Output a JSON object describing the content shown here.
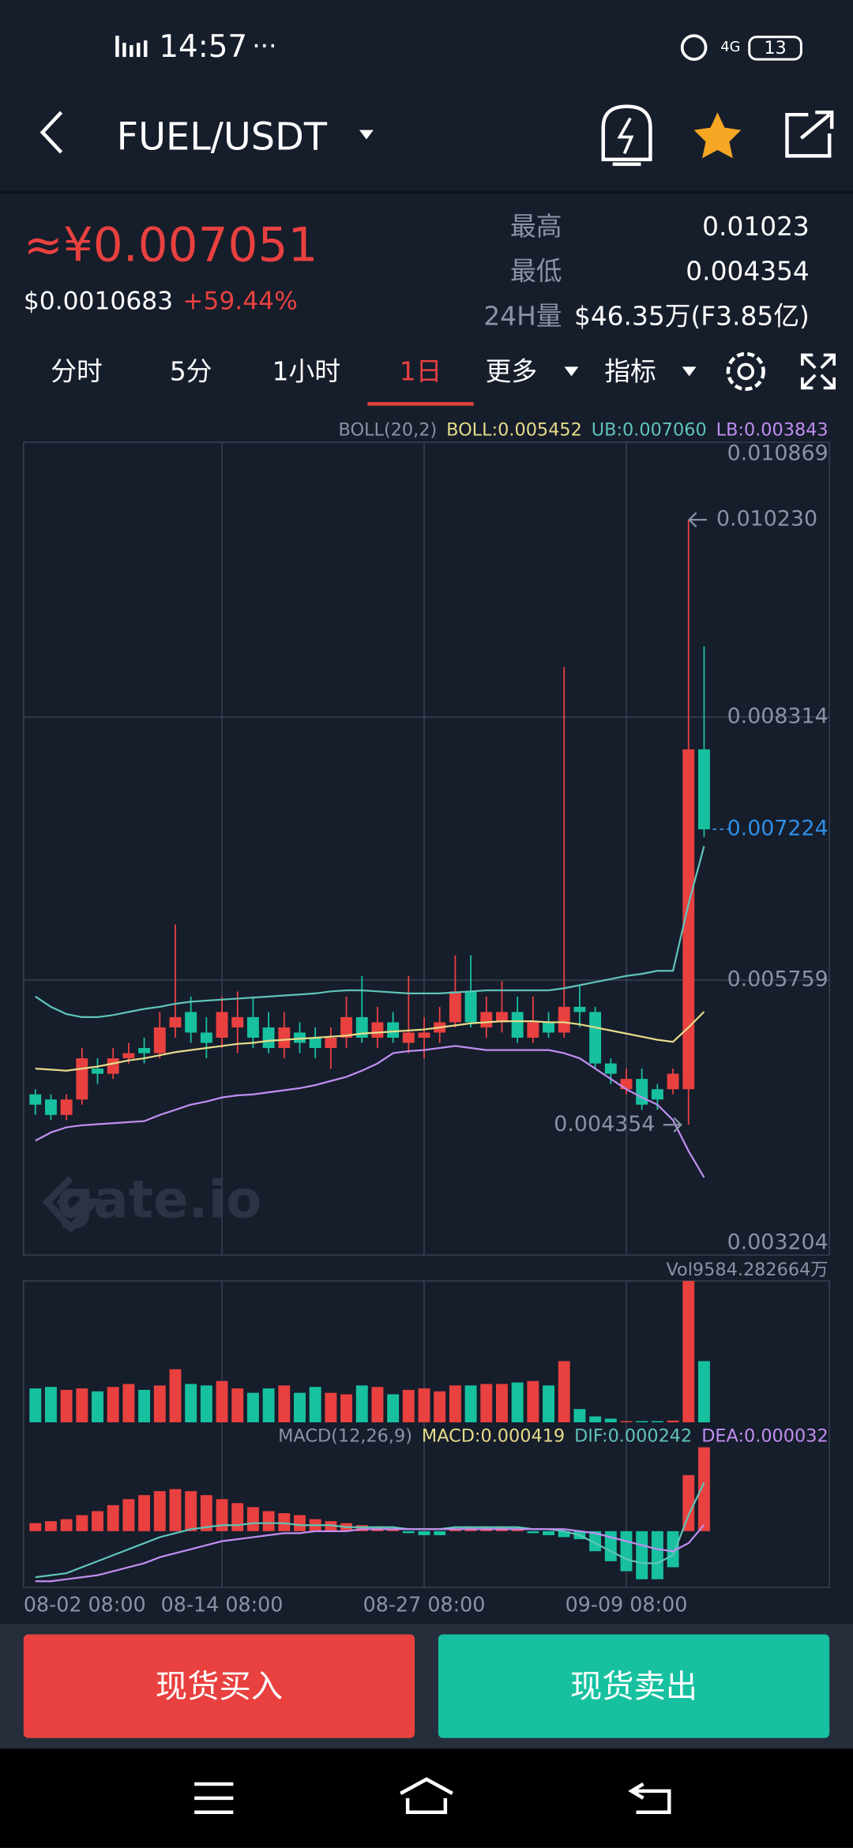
{
  "status_bar": {
    "time": "14:57",
    "battery": "13"
  },
  "header": {
    "title": "FUEL/USDT"
  },
  "ticker": {
    "price_cny": "≈¥0.007051",
    "price_usd": "$0.0010683",
    "change": "+59.44%",
    "stats": [
      {
        "label": "最高",
        "value": "0.01023"
      },
      {
        "label": "最低",
        "value": "0.004354"
      },
      {
        "label": "24H量",
        "value": "$46.35万(F3.85亿)"
      }
    ]
  },
  "tabs": [
    "分时",
    "5分",
    "1小时",
    "1日",
    "更多",
    "指标"
  ],
  "chart_data": {
    "type": "candlestick",
    "categories": [
      "08-02 08:00",
      null,
      null,
      null,
      null,
      null,
      null,
      null,
      null,
      null,
      null,
      null,
      "08-14 08:00",
      null,
      null,
      null,
      null,
      null,
      null,
      null,
      null,
      null,
      null,
      null,
      null,
      "08-27 08:00",
      null,
      null,
      null,
      null,
      null,
      null,
      null,
      null,
      null,
      null,
      null,
      null,
      "09-09 08:00",
      null,
      null,
      null,
      null,
      null
    ],
    "open": [
      0.00465,
      0.0046,
      0.00445,
      0.0046,
      0.0049,
      0.00485,
      0.005,
      0.0051,
      0.00505,
      0.0053,
      0.00545,
      0.00525,
      0.0052,
      0.0053,
      0.0054,
      0.0053,
      0.0051,
      0.00525,
      0.0052,
      0.0051,
      0.0052,
      0.0054,
      0.0052,
      0.00535,
      0.00515,
      0.0052,
      0.00525,
      0.00535,
      0.00565,
      0.0053,
      0.00535,
      0.00545,
      0.0052,
      0.00535,
      0.00525,
      0.0055,
      0.00545,
      0.00495,
      0.0047,
      0.0048,
      0.0047,
      0.0047,
      0.0047,
      0.008
    ],
    "high": [
      0.0047,
      0.00465,
      0.00465,
      0.0051,
      0.005,
      0.0051,
      0.00515,
      0.0052,
      0.00545,
      0.0063,
      0.0056,
      0.0054,
      0.0056,
      0.00565,
      0.0056,
      0.00545,
      0.00545,
      0.00535,
      0.0053,
      0.0053,
      0.0056,
      0.0058,
      0.0055,
      0.00545,
      0.0058,
      0.0054,
      0.0055,
      0.006,
      0.006,
      0.0056,
      0.00575,
      0.0056,
      0.0056,
      0.00545,
      0.0088,
      0.0057,
      0.0055,
      0.005,
      0.0049,
      0.0049,
      0.00475,
      0.0049,
      0.01023,
      0.009
    ],
    "low": [
      0.00445,
      0.0044,
      0.0044,
      0.00455,
      0.00475,
      0.0048,
      0.00495,
      0.00495,
      0.005,
      0.0052,
      0.00515,
      0.005,
      0.0051,
      0.00505,
      0.0051,
      0.00505,
      0.005,
      0.00505,
      0.005,
      0.0049,
      0.0051,
      0.00515,
      0.0051,
      0.00515,
      0.00505,
      0.005,
      0.00515,
      0.0053,
      0.0053,
      0.0052,
      0.00525,
      0.00515,
      0.00515,
      0.0052,
      0.0052,
      0.0053,
      0.0049,
      0.00475,
      0.00465,
      0.0045,
      0.0045,
      0.00465,
      0.004354,
      0.00715
    ],
    "close": [
      0.00455,
      0.00445,
      0.0046,
      0.005,
      0.00485,
      0.005,
      0.00505,
      0.00505,
      0.0053,
      0.0054,
      0.00525,
      0.00515,
      0.00545,
      0.0054,
      0.0052,
      0.0051,
      0.0053,
      0.00515,
      0.0051,
      0.0052,
      0.0054,
      0.0052,
      0.00535,
      0.0052,
      0.00525,
      0.00525,
      0.00535,
      0.00565,
      0.00535,
      0.00545,
      0.00545,
      0.0052,
      0.00535,
      0.00525,
      0.0055,
      0.00545,
      0.00495,
      0.00485,
      0.0048,
      0.00455,
      0.0046,
      0.00485,
      0.008,
      0.007224
    ],
    "ylim": [
      0.003204,
      0.010869
    ],
    "yticks": [
      0.010869,
      0.008314,
      0.005759,
      0.003204
    ],
    "up_color": "#e8413f",
    "down_color": "#17c1a0",
    "high_marker": {
      "value": 0.01023,
      "label": "0.010230"
    },
    "low_marker": 0.004354,
    "last_marker": 0.007224,
    "watermark": "gate.io",
    "boll": {
      "label": "BOLL(20,2)",
      "mid_label": "BOLL:0.005452",
      "ub_label": "UB:0.007060",
      "lb_label": "LB:0.003843",
      "mid": [
        0.0049,
        0.00489,
        0.00488,
        0.0049,
        0.00492,
        0.00495,
        0.00498,
        0.005,
        0.00503,
        0.00506,
        0.00508,
        0.0051,
        0.00512,
        0.00514,
        0.00515,
        0.00517,
        0.00518,
        0.00519,
        0.0052,
        0.00521,
        0.00522,
        0.00524,
        0.00525,
        0.00526,
        0.00527,
        0.00528,
        0.0053,
        0.00532,
        0.00534,
        0.00535,
        0.00536,
        0.00536,
        0.00536,
        0.00535,
        0.00535,
        0.00533,
        0.0053,
        0.00527,
        0.00524,
        0.00521,
        0.00518,
        0.00516,
        0.0053,
        0.005452
      ],
      "ub": [
        0.0056,
        0.0055,
        0.00543,
        0.0054,
        0.0054,
        0.00542,
        0.00545,
        0.00548,
        0.0055,
        0.00553,
        0.00555,
        0.00556,
        0.00557,
        0.00558,
        0.00559,
        0.0056,
        0.00561,
        0.00562,
        0.00563,
        0.00565,
        0.00566,
        0.00566,
        0.00565,
        0.00564,
        0.00563,
        0.00563,
        0.00563,
        0.00564,
        0.00565,
        0.00566,
        0.00566,
        0.00566,
        0.00566,
        0.00566,
        0.00568,
        0.00571,
        0.00574,
        0.00577,
        0.0058,
        0.00582,
        0.00585,
        0.00585,
        0.0065,
        0.00706
      ],
      "lb": [
        0.0042,
        0.00428,
        0.00433,
        0.00435,
        0.00436,
        0.00437,
        0.00438,
        0.00439,
        0.00445,
        0.0045,
        0.00455,
        0.00458,
        0.00462,
        0.00464,
        0.00465,
        0.00467,
        0.00469,
        0.00471,
        0.00474,
        0.00478,
        0.00482,
        0.00488,
        0.00495,
        0.00505,
        0.00507,
        0.00508,
        0.0051,
        0.00512,
        0.0051,
        0.00508,
        0.00508,
        0.00508,
        0.00508,
        0.00508,
        0.00505,
        0.005,
        0.0049,
        0.0048,
        0.0047,
        0.00462,
        0.00455,
        0.0044,
        0.0041,
        0.003843
      ],
      "mid_color": "#e6dc8a",
      "ub_color": "#5fc4b8",
      "lb_color": "#c08ef0"
    },
    "volume": {
      "label": "Vol9584.282664万",
      "ylim": [
        0,
        9584.282664
      ],
      "values": [
        2300,
        2400,
        2200,
        2300,
        2100,
        2400,
        2600,
        2200,
        2500,
        3600,
        2600,
        2500,
        2800,
        2300,
        2000,
        2300,
        2500,
        2000,
        2400,
        2000,
        1900,
        2500,
        2400,
        1900,
        2200,
        2300,
        2100,
        2500,
        2500,
        2600,
        2600,
        2700,
        2800,
        2500,
        4150,
        900,
        400,
        250,
        80,
        80,
        80,
        120,
        9584.282664,
        4150
      ]
    },
    "macd": {
      "label": "MACD(12,26,9)",
      "macd_label": "MACD:0.000419",
      "dif_label": "DIF:0.000242",
      "dea_label": "DEA:0.000032",
      "ylim": [
        -0.00028,
        0.00042
      ],
      "hist": [
        4e-05,
        5e-05,
        6e-05,
        8e-05,
        0.0001,
        0.00013,
        0.00016,
        0.00018,
        0.0002,
        0.00021,
        0.0002,
        0.00018,
        0.00016,
        0.00014,
        0.00012,
        0.0001,
        9e-05,
        8e-05,
        6e-05,
        5e-05,
        4e-05,
        3e-05,
        2e-05,
        1e-05,
        -1e-05,
        -2e-05,
        -2e-05,
        1e-05,
        2e-05,
        2e-05,
        2e-05,
        1e-05,
        -1e-05,
        -2e-05,
        -3e-05,
        -4e-05,
        -0.0001,
        -0.00015,
        -0.0002,
        -0.00024,
        -0.00024,
        -0.00018,
        0.00028,
        0.000419
      ],
      "dif": [
        -0.00023,
        -0.00022,
        -0.00021,
        -0.00018,
        -0.00015,
        -0.00012,
        -9e-05,
        -6e-05,
        -3e-05,
        -1e-05,
        1e-05,
        2e-05,
        3e-05,
        3e-05,
        4e-05,
        4e-05,
        4e-05,
        3e-05,
        3e-05,
        3e-05,
        2e-05,
        2e-05,
        2e-05,
        2e-05,
        1e-05,
        1e-05,
        1e-05,
        2e-05,
        2e-05,
        2e-05,
        2e-05,
        2e-05,
        1e-05,
        1e-05,
        0,
        -2e-05,
        -6e-05,
        -0.0001,
        -0.00014,
        -0.00016,
        -0.00016,
        -0.00012,
        8e-05,
        0.000242
      ],
      "dea": [
        -0.00025,
        -0.00025,
        -0.00024,
        -0.00023,
        -0.00022,
        -0.0002,
        -0.00018,
        -0.00016,
        -0.00013,
        -0.00011,
        -9e-05,
        -7e-05,
        -5e-05,
        -4e-05,
        -3e-05,
        -2e-05,
        -1e-05,
        -1e-05,
        0,
        0,
        0,
        1e-05,
        1e-05,
        1e-05,
        1e-05,
        1e-05,
        1e-05,
        1e-05,
        1e-05,
        1e-05,
        1e-05,
        1e-05,
        1e-05,
        1e-05,
        1e-05,
        0,
        -1e-05,
        -3e-05,
        -5e-05,
        -7e-05,
        -9e-05,
        -0.0001,
        -6e-05,
        3.2e-05
      ]
    }
  },
  "actions": {
    "buy": "现货买入",
    "sell": "现货卖出"
  }
}
